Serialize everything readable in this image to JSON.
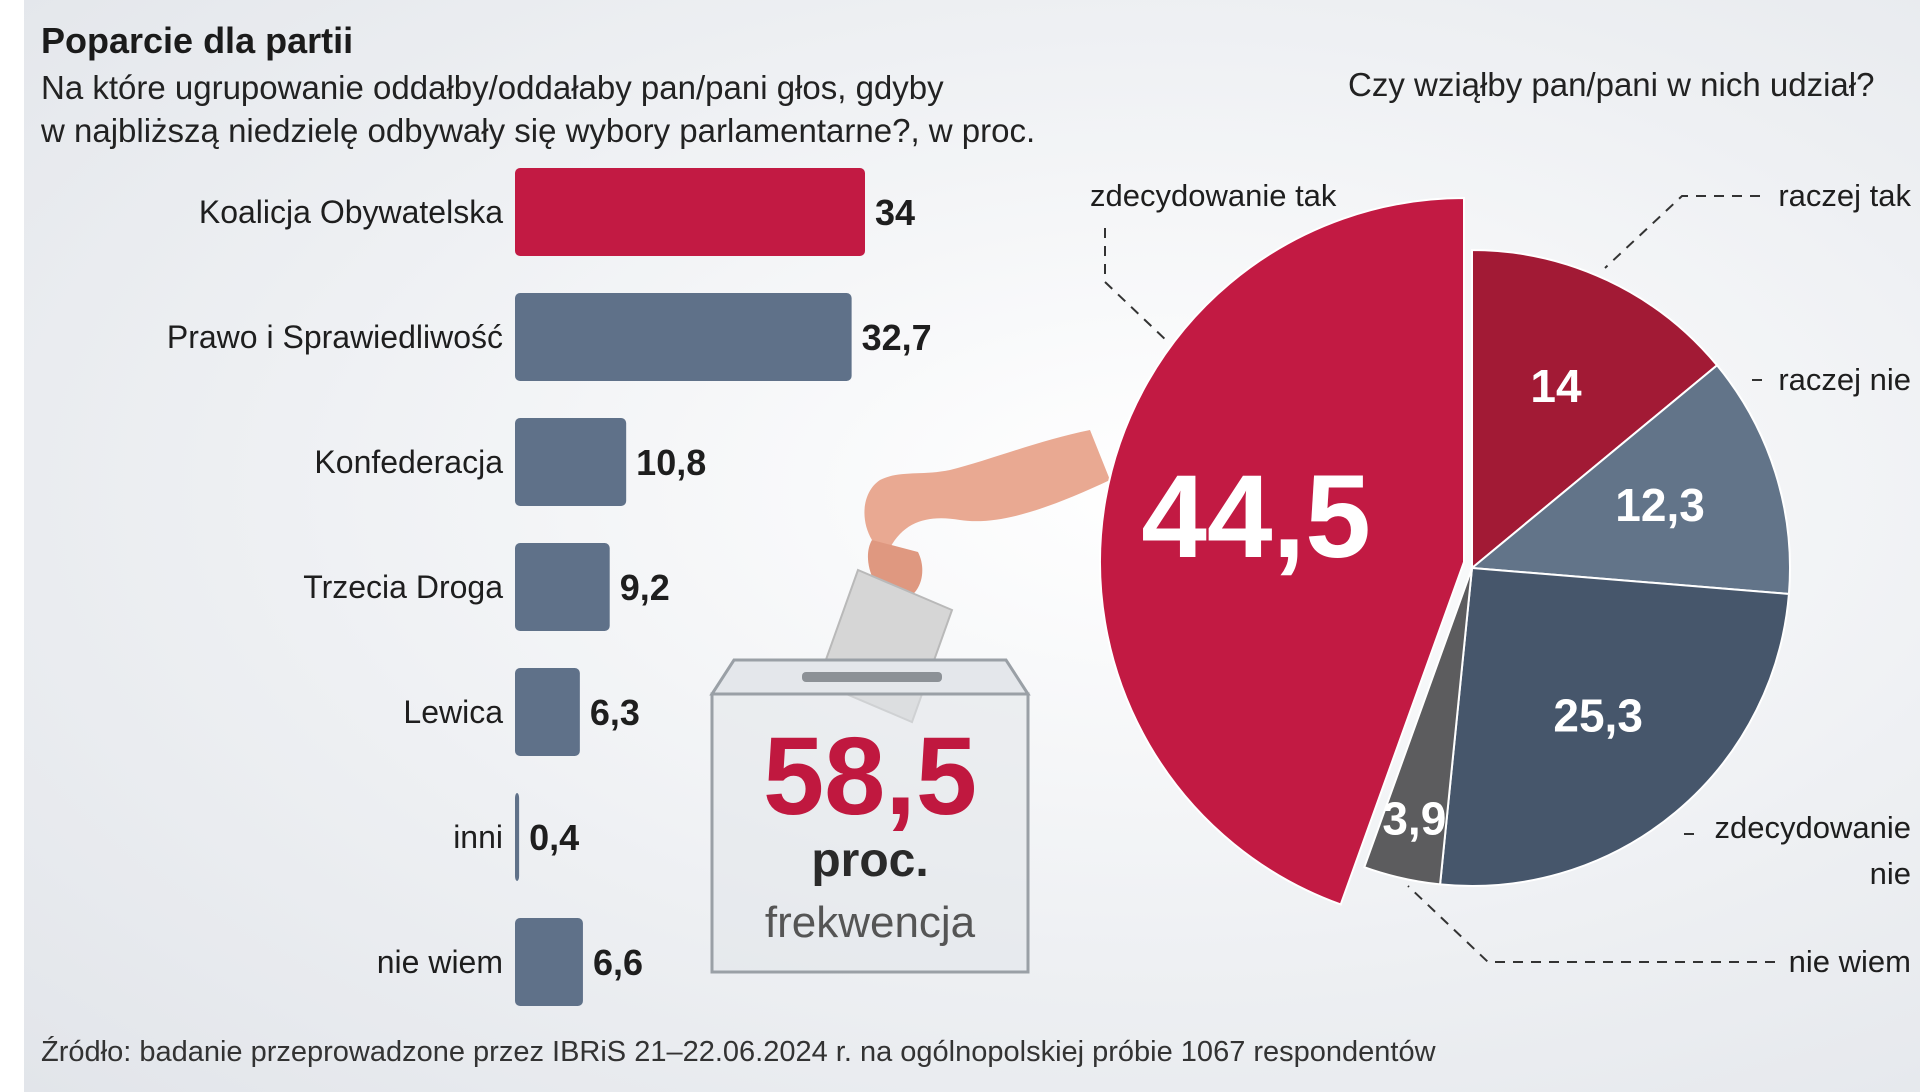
{
  "header": {
    "title": "Poparcie dla partii",
    "subtitle_line1": "Na które ugrupowanie oddałby/oddałaby pan/pani głos, gdyby",
    "subtitle_line2": "w najbliższą niedzielę odbywały się wybory parlamentarne?, w proc.",
    "question": "Czy wziąłby pan/pani w nich udział?"
  },
  "turnout": {
    "value": "58,5",
    "unit": "proc.",
    "label": "frekwencja"
  },
  "source": "Źródło: badanie przeprowadzone przez IBRiS  21–22.06.2024 r. na ogólnopolskiej próbie 1067 respondentów",
  "chart_data": [
    {
      "type": "bar",
      "orientation": "horizontal",
      "title": "Poparcie dla partii",
      "unit": "proc.",
      "categories": [
        "Koalicja Obywatelska",
        "Prawo i Sprawiedliwość",
        "Konfederacja",
        "Trzecia Droga",
        "Lewica",
        "inni",
        "nie wiem"
      ],
      "values": [
        34,
        32.7,
        10.8,
        9.2,
        6.3,
        0.4,
        6.6
      ],
      "labels": [
        "34",
        "32,7",
        "10,8",
        "9,2",
        "6,3",
        "0,4",
        "6,6"
      ],
      "colors": [
        "#c21a43",
        "#5f7189",
        "#5f7189",
        "#5f7189",
        "#5f7189",
        "#5f7189",
        "#5f7189"
      ],
      "xlim": [
        0,
        34
      ]
    },
    {
      "type": "pie",
      "title": "Czy wziąłby pan/pani w nich udział?",
      "slices": [
        {
          "name": "zdecydowanie tak",
          "value": 44.5,
          "label": "44,5",
          "color": "#c21a43",
          "exploded": true
        },
        {
          "name": "raczej tak",
          "value": 14,
          "label": "14",
          "color": "#a21a35"
        },
        {
          "name": "raczej nie",
          "value": 12.3,
          "label": "12,3",
          "color": "#627489"
        },
        {
          "name": "zdecydowanie nie",
          "value": 25.3,
          "label": "25,3",
          "color": "#46566b"
        },
        {
          "name": "nie wiem",
          "value": 3.9,
          "label": "3,9",
          "color": "#5c5c5e"
        }
      ],
      "legend_labels": {
        "zdecydowanie tak": "zdecydowanie tak",
        "raczej tak": "raczej tak",
        "raczej nie": "raczej nie",
        "zdecydowanie nie_line1": "zdecydowanie",
        "zdecydowanie nie_line2": "nie",
        "nie wiem": "nie wiem"
      }
    }
  ]
}
